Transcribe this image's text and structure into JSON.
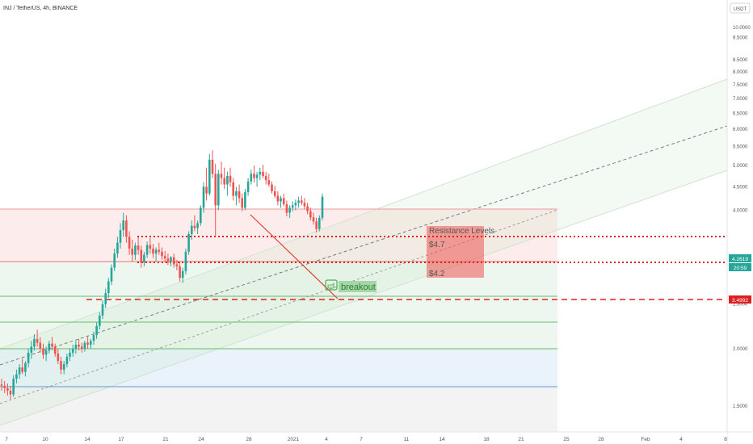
{
  "header": {
    "title": "INJ / TetherUS, 4h, BINANCE"
  },
  "price_axis": {
    "currency_button": "USDT"
  },
  "chart_data": {
    "type": "candlestick",
    "title": "INJ / TetherUS, 4h, BINANCE",
    "y_scale": "log",
    "ylim": [
      1.3,
      11.0
    ],
    "y_ticks": [
      {
        "value": 1.5,
        "label": "1.5000"
      },
      {
        "value": 2.0,
        "label": "2.0000"
      },
      {
        "value": 2.5,
        "label": "2.5000"
      },
      {
        "value": 3.0,
        "label": "3.0000"
      },
      {
        "value": 4.0,
        "label": "4.0000"
      },
      {
        "value": 4.5,
        "label": "4.5000"
      },
      {
        "value": 5.0,
        "label": "5.0000"
      },
      {
        "value": 5.5,
        "label": "5.5000"
      },
      {
        "value": 6.0,
        "label": "6.0000"
      },
      {
        "value": 6.5,
        "label": "6.5000"
      },
      {
        "value": 7.0,
        "label": "7.0000"
      },
      {
        "value": 7.5,
        "label": "7.5000"
      },
      {
        "value": 8.0,
        "label": "8.0000"
      },
      {
        "value": 8.5,
        "label": "8.5000"
      },
      {
        "value": 9.5,
        "label": "9.5000"
      },
      {
        "value": 10.0,
        "label": "10.0000"
      }
    ],
    "x_ticks": [
      "7",
      "10",
      "14",
      "17",
      "21",
      "24",
      "28",
      "2021",
      "4",
      "7",
      "11",
      "14",
      "18",
      "21",
      "25",
      "28",
      "Feb",
      "4",
      "8"
    ],
    "last_price": {
      "label": "4.2619",
      "value": 4.26
    },
    "countdown": {
      "label": "20:59"
    },
    "series_color_up": "#26a69a",
    "series_color_down": "#ef5350",
    "candles": [
      [
        1.67,
        1.72,
        1.62,
        1.66
      ],
      [
        1.66,
        1.7,
        1.6,
        1.64
      ],
      [
        1.64,
        1.68,
        1.58,
        1.62
      ],
      [
        1.62,
        1.66,
        1.55,
        1.59
      ],
      [
        1.59,
        1.75,
        1.57,
        1.72
      ],
      [
        1.72,
        1.8,
        1.68,
        1.76
      ],
      [
        1.76,
        1.85,
        1.72,
        1.82
      ],
      [
        1.82,
        1.9,
        1.76,
        1.78
      ],
      [
        1.78,
        1.88,
        1.74,
        1.86
      ],
      [
        1.86,
        2.0,
        1.82,
        1.96
      ],
      [
        1.96,
        2.08,
        1.9,
        2.02
      ],
      [
        2.02,
        2.15,
        1.98,
        2.1
      ],
      [
        2.1,
        2.2,
        2.02,
        2.06
      ],
      [
        2.06,
        2.12,
        1.96,
        2.0
      ],
      [
        2.0,
        2.05,
        1.9,
        1.94
      ],
      [
        1.94,
        2.02,
        1.88,
        1.98
      ],
      [
        1.98,
        2.08,
        1.95,
        2.05
      ],
      [
        2.05,
        2.12,
        1.98,
        2.02
      ],
      [
        2.02,
        2.05,
        1.92,
        1.95
      ],
      [
        1.95,
        2.0,
        1.85,
        1.88
      ],
      [
        1.88,
        1.92,
        1.76,
        1.8
      ],
      [
        1.8,
        1.88,
        1.76,
        1.85
      ],
      [
        1.85,
        1.95,
        1.82,
        1.92
      ],
      [
        1.92,
        2.0,
        1.88,
        1.96
      ],
      [
        1.96,
        2.04,
        1.92,
        2.0
      ],
      [
        2.0,
        2.08,
        1.95,
        2.04
      ],
      [
        2.04,
        2.1,
        1.98,
        2.02
      ],
      [
        2.02,
        2.06,
        1.96,
        2.0
      ],
      [
        2.0,
        2.08,
        1.97,
        2.06
      ],
      [
        2.06,
        2.12,
        2.0,
        2.04
      ],
      [
        2.04,
        2.1,
        2.0,
        2.08
      ],
      [
        2.08,
        2.18,
        2.04,
        2.14
      ],
      [
        2.14,
        2.28,
        2.1,
        2.24
      ],
      [
        2.24,
        2.4,
        2.2,
        2.36
      ],
      [
        2.36,
        2.55,
        2.32,
        2.5
      ],
      [
        2.5,
        2.7,
        2.45,
        2.64
      ],
      [
        2.64,
        2.85,
        2.58,
        2.8
      ],
      [
        2.8,
        3.05,
        2.75,
        3.0
      ],
      [
        3.0,
        3.3,
        2.95,
        3.22
      ],
      [
        3.22,
        3.5,
        3.15,
        3.4
      ],
      [
        3.4,
        3.75,
        3.3,
        3.62
      ],
      [
        3.62,
        3.95,
        3.5,
        3.8
      ],
      [
        3.8,
        3.9,
        3.4,
        3.5
      ],
      [
        3.5,
        3.6,
        3.2,
        3.3
      ],
      [
        3.3,
        3.45,
        3.1,
        3.2
      ],
      [
        3.2,
        3.4,
        3.12,
        3.35
      ],
      [
        3.35,
        3.5,
        3.2,
        3.28
      ],
      [
        3.28,
        3.35,
        3.0,
        3.08
      ],
      [
        3.08,
        3.25,
        3.02,
        3.2
      ],
      [
        3.2,
        3.42,
        3.15,
        3.36
      ],
      [
        3.36,
        3.48,
        3.22,
        3.3
      ],
      [
        3.3,
        3.38,
        3.15,
        3.22
      ],
      [
        3.22,
        3.32,
        3.1,
        3.28
      ],
      [
        3.28,
        3.4,
        3.2,
        3.25
      ],
      [
        3.25,
        3.32,
        3.12,
        3.18
      ],
      [
        3.18,
        3.26,
        3.08,
        3.14
      ],
      [
        3.14,
        3.22,
        3.04,
        3.1
      ],
      [
        3.1,
        3.18,
        3.02,
        3.16
      ],
      [
        3.16,
        3.22,
        3.0,
        3.05
      ],
      [
        3.05,
        3.12,
        2.96,
        3.02
      ],
      [
        3.02,
        3.1,
        2.8,
        2.85
      ],
      [
        2.85,
        3.0,
        2.78,
        2.95
      ],
      [
        2.95,
        3.3,
        2.9,
        3.25
      ],
      [
        3.25,
        3.6,
        3.2,
        3.55
      ],
      [
        3.55,
        3.8,
        3.45,
        3.7
      ],
      [
        3.7,
        3.9,
        3.6,
        3.66
      ],
      [
        3.66,
        3.8,
        3.55,
        3.75
      ],
      [
        3.75,
        4.1,
        3.7,
        4.05
      ],
      [
        4.05,
        4.6,
        3.95,
        4.5
      ],
      [
        4.5,
        4.95,
        4.2,
        4.35
      ],
      [
        4.35,
        5.3,
        4.3,
        5.15
      ],
      [
        5.15,
        5.4,
        4.7,
        4.8
      ],
      [
        4.8,
        5.05,
        3.5,
        4.1
      ],
      [
        4.1,
        4.9,
        4.0,
        4.8
      ],
      [
        4.8,
        5.1,
        4.55,
        4.7
      ],
      [
        4.7,
        4.95,
        4.45,
        4.55
      ],
      [
        4.55,
        4.85,
        4.3,
        4.75
      ],
      [
        4.75,
        4.95,
        4.5,
        4.6
      ],
      [
        4.6,
        4.7,
        4.2,
        4.3
      ],
      [
        4.3,
        4.5,
        4.1,
        4.4
      ],
      [
        4.4,
        4.55,
        4.15,
        4.25
      ],
      [
        4.25,
        4.35,
        3.98,
        4.05
      ],
      [
        4.05,
        4.45,
        4.0,
        4.38
      ],
      [
        4.38,
        4.7,
        4.3,
        4.62
      ],
      [
        4.62,
        4.9,
        4.55,
        4.8
      ],
      [
        4.8,
        5.0,
        4.6,
        4.7
      ],
      [
        4.7,
        4.85,
        4.5,
        4.78
      ],
      [
        4.78,
        4.95,
        4.65,
        4.85
      ],
      [
        4.85,
        5.02,
        4.7,
        4.75
      ],
      [
        4.75,
        4.85,
        4.55,
        4.65
      ],
      [
        4.65,
        4.8,
        4.5,
        4.55
      ],
      [
        4.55,
        4.62,
        4.35,
        4.4
      ],
      [
        4.4,
        4.52,
        4.25,
        4.3
      ],
      [
        4.3,
        4.4,
        4.1,
        4.18
      ],
      [
        4.18,
        4.3,
        4.05,
        4.25
      ],
      [
        4.25,
        4.35,
        4.08,
        4.12
      ],
      [
        4.12,
        4.2,
        3.88,
        3.95
      ],
      [
        3.95,
        4.1,
        3.85,
        4.05
      ],
      [
        4.05,
        4.18,
        3.98,
        4.1
      ],
      [
        4.1,
        4.22,
        4.0,
        4.15
      ],
      [
        4.15,
        4.28,
        4.05,
        4.2
      ],
      [
        4.2,
        4.3,
        4.1,
        4.15
      ],
      [
        4.15,
        4.25,
        4.02,
        4.08
      ],
      [
        4.08,
        4.15,
        3.92,
        3.98
      ],
      [
        3.98,
        4.05,
        3.8,
        3.86
      ],
      [
        3.86,
        3.95,
        3.72,
        3.78
      ],
      [
        3.78,
        3.85,
        3.58,
        3.64
      ],
      [
        3.64,
        3.9,
        3.6,
        3.85
      ],
      [
        3.85,
        4.35,
        3.8,
        4.28
      ]
    ]
  },
  "annotations": {
    "resistance_title": "Resistance Levels",
    "level_high": "$4.7",
    "level_low": "$4.2",
    "breakout": "breakout",
    "support_price": "3.4992"
  },
  "colors": {
    "resistance_line": "#e02020",
    "channel_line": "#b0bec5",
    "mid_line": "#787b86",
    "trend_line": "#e53935",
    "zone_red": "rgba(239,83,80,0.55)",
    "breakout_bg": "#a5d6a7"
  }
}
